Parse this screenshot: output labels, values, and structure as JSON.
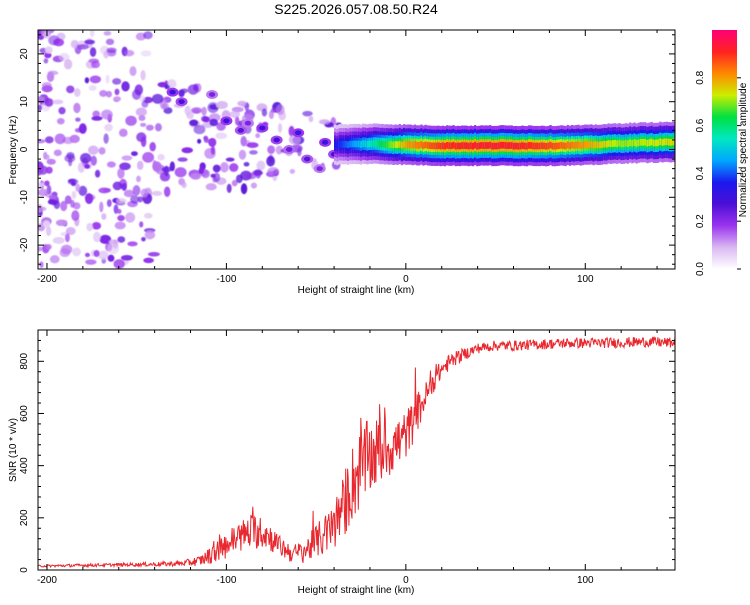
{
  "figure_title": "S225.2026.057.08.50.R24",
  "colors": {
    "snr_line": "#e8282e",
    "frame": "#000000",
    "colormap": [
      "#ffffff",
      "#d9b8f2",
      "#9933ee",
      "#4b0fd6",
      "#1a1aee",
      "#00a8ff",
      "#00e8c0",
      "#00e040",
      "#ccee00",
      "#ff8800",
      "#ff2222",
      "#ff0077"
    ]
  },
  "chart_data": [
    {
      "type": "heatmap",
      "title": "",
      "xlabel": "Height of straight line (km)",
      "ylabel": "Frequency (Hz)",
      "xlim": [
        -205,
        150
      ],
      "ylim": [
        -25,
        25
      ],
      "xticks": [
        -200,
        -100,
        0,
        100
      ],
      "yticks": [
        -20,
        -10,
        0,
        10,
        20
      ],
      "colorbar": {
        "label": "Normalized spectral amplitude",
        "range": [
          0.0,
          1.0
        ],
        "ticks": [
          0.0,
          0.2,
          0.4,
          0.6,
          0.8
        ]
      },
      "ridge": {
        "description": "Dominant spectral line near 0 Hz for heights above about -40 km; scattered broadband energy below",
        "x": [
          -40,
          -20,
          0,
          20,
          40,
          60,
          80,
          100,
          120,
          150
        ],
        "frequency": [
          1.0,
          1.2,
          1.0,
          0.8,
          0.8,
          0.8,
          0.8,
          0.9,
          1.3,
          1.6
        ],
        "amplitude": [
          0.35,
          0.55,
          0.8,
          0.9,
          0.92,
          0.92,
          0.88,
          0.8,
          0.7,
          0.75
        ]
      },
      "blobs": [
        {
          "x": -130,
          "y": 12,
          "amp": 0.3
        },
        {
          "x": -125,
          "y": 10,
          "amp": 0.28
        },
        {
          "x": -108,
          "y": 11.5,
          "amp": 0.22
        },
        {
          "x": -100,
          "y": 6,
          "amp": 0.3
        },
        {
          "x": -92,
          "y": 4,
          "amp": 0.26
        },
        {
          "x": -88,
          "y": 5.5,
          "amp": 0.22
        },
        {
          "x": -80,
          "y": 4.5,
          "amp": 0.3
        },
        {
          "x": -72,
          "y": 2,
          "amp": 0.28
        },
        {
          "x": -65,
          "y": 0,
          "amp": 0.24
        },
        {
          "x": -60,
          "y": 3.5,
          "amp": 0.3
        },
        {
          "x": -55,
          "y": -2,
          "amp": 0.26
        },
        {
          "x": -48,
          "y": -4,
          "amp": 0.22
        },
        {
          "x": -45,
          "y": 1.5,
          "amp": 0.3
        },
        {
          "x": -40,
          "y": -1,
          "amp": 0.28
        },
        {
          "x": -35,
          "y": 1.5,
          "amp": 0.4
        },
        {
          "x": -28,
          "y": 1.5,
          "amp": 0.45
        },
        {
          "x": -22,
          "y": 1.8,
          "amp": 0.5
        },
        {
          "x": -12,
          "y": 1.0,
          "amp": 0.55
        },
        {
          "x": -5,
          "y": 0.5,
          "amp": 0.55
        },
        {
          "x": 80,
          "y": 0.9,
          "amp": 0.6
        }
      ]
    },
    {
      "type": "line",
      "title": "",
      "xlabel": "Height of straight line (km)",
      "ylabel": "SNR (10 * v/v)",
      "xlim": [
        -205,
        150
      ],
      "ylim": [
        0,
        920
      ],
      "xticks": [
        -200,
        -100,
        0,
        100
      ],
      "yticks": [
        0,
        200,
        400,
        600,
        800
      ],
      "series": [
        {
          "name": "SNR",
          "x": [
            -205,
            -180,
            -160,
            -140,
            -125,
            -115,
            -105,
            -95,
            -85,
            -78,
            -70,
            -62,
            -55,
            -48,
            -42,
            -36,
            -30,
            -26,
            -22,
            -18,
            -14,
            -10,
            -6,
            -2,
            2,
            6,
            10,
            15,
            20,
            25,
            30,
            35,
            40,
            50,
            60,
            75,
            90,
            105,
            120,
            135,
            150
          ],
          "values": [
            15,
            18,
            20,
            22,
            25,
            35,
            70,
            120,
            150,
            140,
            90,
            60,
            80,
            120,
            150,
            220,
            330,
            380,
            420,
            440,
            460,
            470,
            480,
            500,
            540,
            600,
            650,
            720,
            770,
            800,
            820,
            835,
            850,
            860,
            860,
            865,
            870,
            870,
            872,
            875,
            870
          ],
          "noise": [
            4,
            6,
            6,
            8,
            10,
            20,
            40,
            60,
            70,
            60,
            40,
            40,
            50,
            70,
            90,
            120,
            150,
            160,
            150,
            140,
            130,
            120,
            110,
            100,
            90,
            80,
            60,
            45,
            35,
            30,
            25,
            22,
            20,
            20,
            20,
            20,
            20,
            20,
            20,
            20,
            20
          ]
        }
      ]
    }
  ]
}
